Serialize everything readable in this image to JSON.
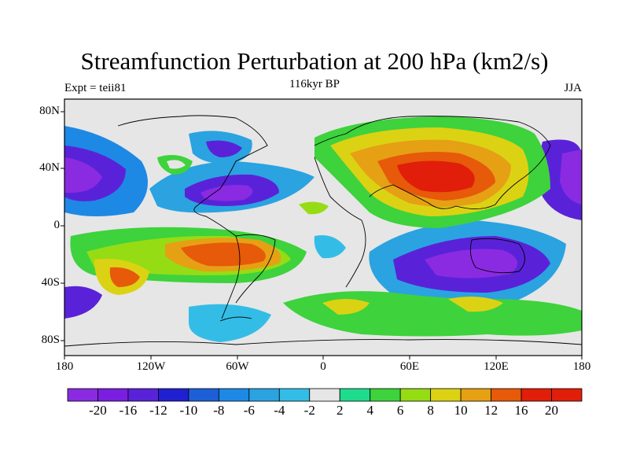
{
  "title": "Streamfunction Perturbation at 200 hPa (km2/s)",
  "left_string": "Expt = teii81",
  "center_string": "116kyr BP",
  "right_string": "JJA",
  "lat_labels": [
    "80N",
    "40N",
    "0",
    "40S",
    "80S"
  ],
  "lon_labels": [
    "180",
    "120W",
    "60W",
    "0",
    "60E",
    "120E",
    "180"
  ],
  "colorbar": {
    "labels": [
      "-20",
      "-16",
      "-12",
      "-10",
      "-8",
      "-6",
      "-4",
      "-2",
      "2",
      "4",
      "6",
      "8",
      "10",
      "12",
      "16",
      "20"
    ],
    "colors": [
      "#8a2be2",
      "#7a1fe0",
      "#5a22d8",
      "#2020d0",
      "#1d5fd6",
      "#1e88e5",
      "#2aa3e0",
      "#33bde6",
      "#e6e6e6",
      "#1edc8c",
      "#3ed23c",
      "#96dc14",
      "#dcd214",
      "#e6a014",
      "#e65a0a",
      "#e11e0a"
    ]
  }
}
